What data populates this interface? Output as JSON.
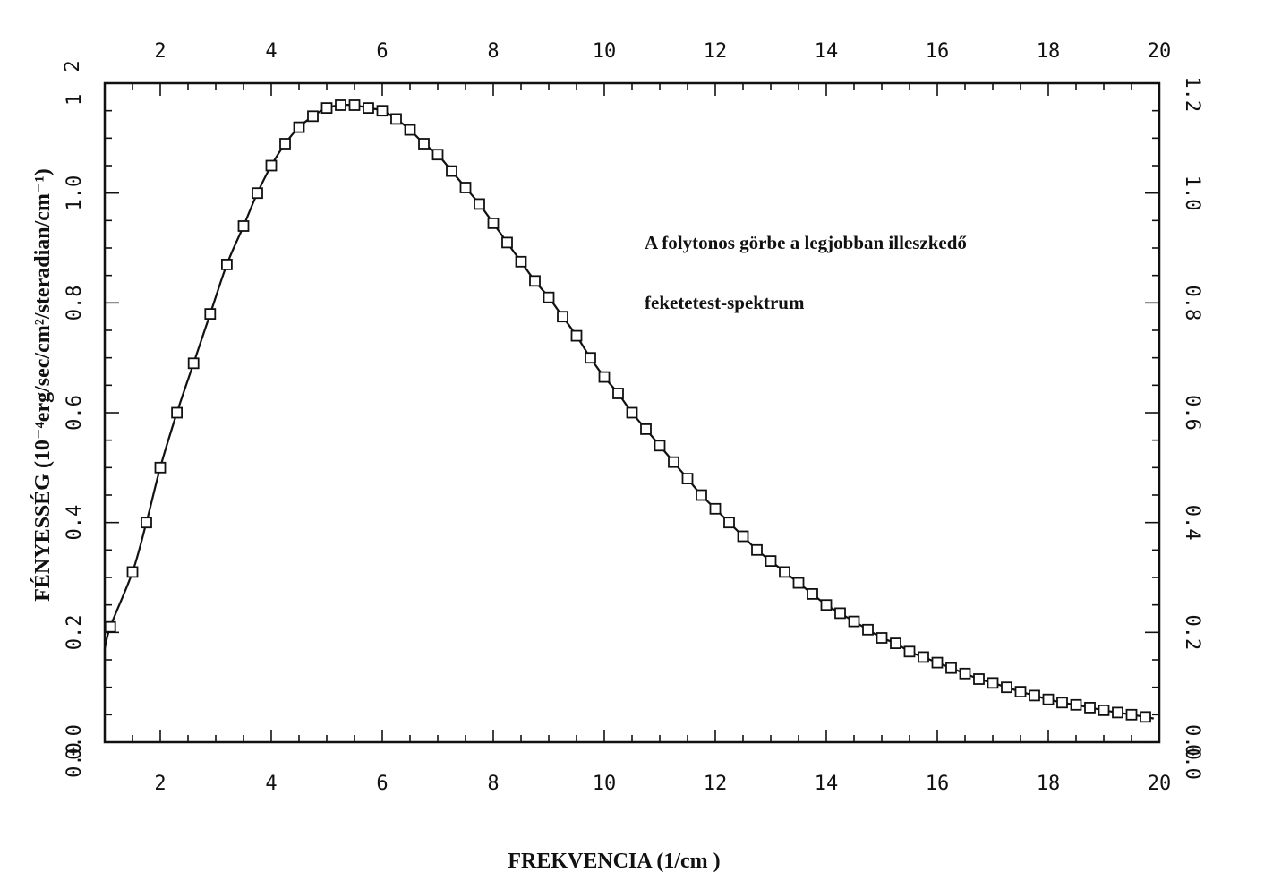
{
  "chart_data": {
    "type": "scatter",
    "xlabel": "FREKVENCIA (1/cm )",
    "ylabel": "FÉNYESSÉG (10⁻⁴erg/sec/cm²/steradian/cm⁻¹)",
    "annotation": [
      "A folytonos görbe a legjobban illeszkedő",
      "feketetest-spektrum"
    ],
    "xlim": [
      1,
      20
    ],
    "ylim": [
      0.0,
      1.2
    ],
    "x_ticks": [
      2,
      4,
      6,
      8,
      10,
      12,
      14,
      16,
      18,
      20
    ],
    "x_ticks_top": [
      2,
      4,
      6,
      8,
      10,
      12,
      14,
      16,
      18,
      20
    ],
    "y_ticks": [
      "0.0",
      "0.2",
      "0.4",
      "0.6",
      "0.8",
      "1.0",
      "1"
    ],
    "y_ticks_right": [
      "0.0",
      "0.2",
      "0.4",
      "0.6",
      "0.8",
      "1.0",
      "1.2"
    ],
    "grid": false,
    "series": [
      {
        "name": "",
        "marker": "square",
        "points": [
          [
            1.1,
            0.21
          ],
          [
            1.5,
            0.31
          ],
          [
            1.75,
            0.4
          ],
          [
            2.0,
            0.5
          ],
          [
            2.3,
            0.6
          ],
          [
            2.6,
            0.69
          ],
          [
            2.9,
            0.78
          ],
          [
            3.2,
            0.87
          ],
          [
            3.5,
            0.94
          ],
          [
            3.75,
            1.0
          ],
          [
            4.0,
            1.05
          ],
          [
            4.25,
            1.09
          ],
          [
            4.5,
            1.12
          ],
          [
            4.75,
            1.14
          ],
          [
            5.0,
            1.155
          ],
          [
            5.25,
            1.16
          ],
          [
            5.5,
            1.16
          ],
          [
            5.75,
            1.155
          ],
          [
            6.0,
            1.15
          ],
          [
            6.25,
            1.135
          ],
          [
            6.5,
            1.115
          ],
          [
            6.75,
            1.09
          ],
          [
            7.0,
            1.07
          ],
          [
            7.25,
            1.04
          ],
          [
            7.5,
            1.01
          ],
          [
            7.75,
            0.98
          ],
          [
            8.0,
            0.945
          ],
          [
            8.25,
            0.91
          ],
          [
            8.5,
            0.875
          ],
          [
            8.75,
            0.84
          ],
          [
            9.0,
            0.81
          ],
          [
            9.25,
            0.775
          ],
          [
            9.5,
            0.74
          ],
          [
            9.75,
            0.7
          ],
          [
            10.0,
            0.665
          ],
          [
            10.25,
            0.635
          ],
          [
            10.5,
            0.6
          ],
          [
            10.75,
            0.57
          ],
          [
            11.0,
            0.54
          ],
          [
            11.25,
            0.51
          ],
          [
            11.5,
            0.48
          ],
          [
            11.75,
            0.45
          ],
          [
            12.0,
            0.425
          ],
          [
            12.25,
            0.4
          ],
          [
            12.5,
            0.375
          ],
          [
            12.75,
            0.35
          ],
          [
            13.0,
            0.33
          ],
          [
            13.25,
            0.31
          ],
          [
            13.5,
            0.29
          ],
          [
            13.75,
            0.27
          ],
          [
            14.0,
            0.25
          ],
          [
            14.25,
            0.235
          ],
          [
            14.5,
            0.22
          ],
          [
            14.75,
            0.205
          ],
          [
            15.0,
            0.19
          ],
          [
            15.25,
            0.18
          ],
          [
            15.5,
            0.165
          ],
          [
            15.75,
            0.155
          ],
          [
            16.0,
            0.145
          ],
          [
            16.25,
            0.135
          ],
          [
            16.5,
            0.125
          ],
          [
            16.75,
            0.115
          ],
          [
            17.0,
            0.108
          ],
          [
            17.25,
            0.1
          ],
          [
            17.5,
            0.092
          ],
          [
            17.75,
            0.085
          ],
          [
            18.0,
            0.078
          ],
          [
            18.25,
            0.072
          ],
          [
            18.5,
            0.068
          ],
          [
            18.75,
            0.063
          ],
          [
            19.0,
            0.058
          ],
          [
            19.25,
            0.054
          ],
          [
            19.5,
            0.05
          ],
          [
            19.75,
            0.046
          ]
        ]
      }
    ],
    "fit_curve": "blackbody"
  }
}
